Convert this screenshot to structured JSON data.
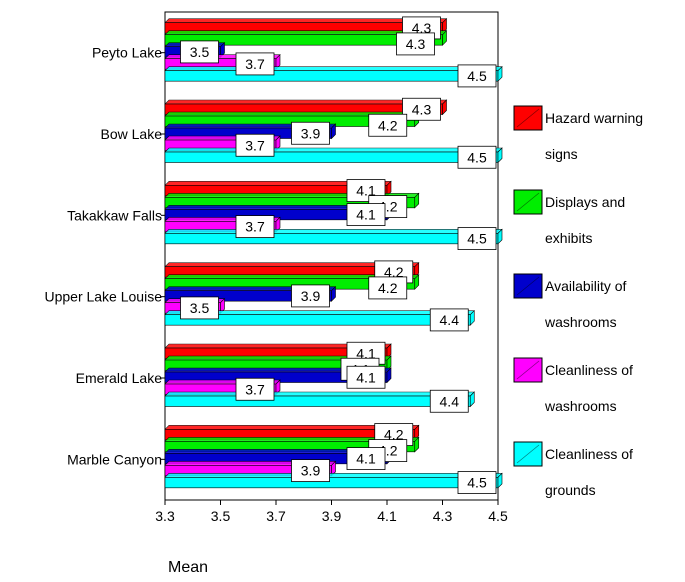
{
  "chart_data": {
    "type": "bar",
    "orientation": "horizontal",
    "categories": [
      "Peyto Lake",
      "Bow Lake",
      "Takakkaw Falls",
      "Upper Lake Louise",
      "Emerald Lake",
      "Marble Canyon"
    ],
    "series": [
      {
        "name": "Hazard warning signs",
        "color": "#ff0000",
        "values": [
          4.3,
          4.3,
          4.1,
          4.2,
          4.1,
          4.2
        ],
        "labels": [
          "4.3",
          "4.3",
          "4.1",
          "4.2",
          "4.1",
          "4.2"
        ]
      },
      {
        "name": "Displays and exhibits",
        "color": "#00ee00",
        "values": [
          4.3,
          4.2,
          4.2,
          4.2,
          4.1,
          4.2
        ],
        "labels": [
          "4.3",
          "4.2",
          "4.2",
          "4.2",
          "4.1",
          "4.2"
        ]
      },
      {
        "name": "Availability of washrooms",
        "color": "#0000cc",
        "values": [
          3.5,
          3.9,
          4.1,
          3.9,
          4.1,
          4.1
        ],
        "labels": [
          "3.5",
          "3.9",
          "4.1",
          "3.9",
          "4.1",
          "4.1"
        ]
      },
      {
        "name": "Cleanliness of washrooms",
        "color": "#ff00ff",
        "values": [
          3.7,
          3.7,
          3.7,
          3.5,
          3.7,
          3.9
        ],
        "labels": [
          "3.7",
          "3.7",
          "3.7",
          "3.5",
          "3.7",
          "3.9"
        ]
      },
      {
        "name": "Cleanliness of grounds",
        "color": "#00ffff",
        "values": [
          4.5,
          4.5,
          4.5,
          4.4,
          4.4,
          4.5
        ],
        "labels": [
          "4.5",
          "4.5",
          "4.5",
          "4.4",
          "4.4",
          "4.5"
        ]
      }
    ],
    "xlabel": "Mean",
    "xlim": [
      3.3,
      4.5
    ],
    "ticks": [
      "3.3",
      "3.5",
      "3.7",
      "3.9",
      "4.1",
      "4.3",
      "4.5"
    ],
    "legend_position": "right",
    "grid": false
  }
}
